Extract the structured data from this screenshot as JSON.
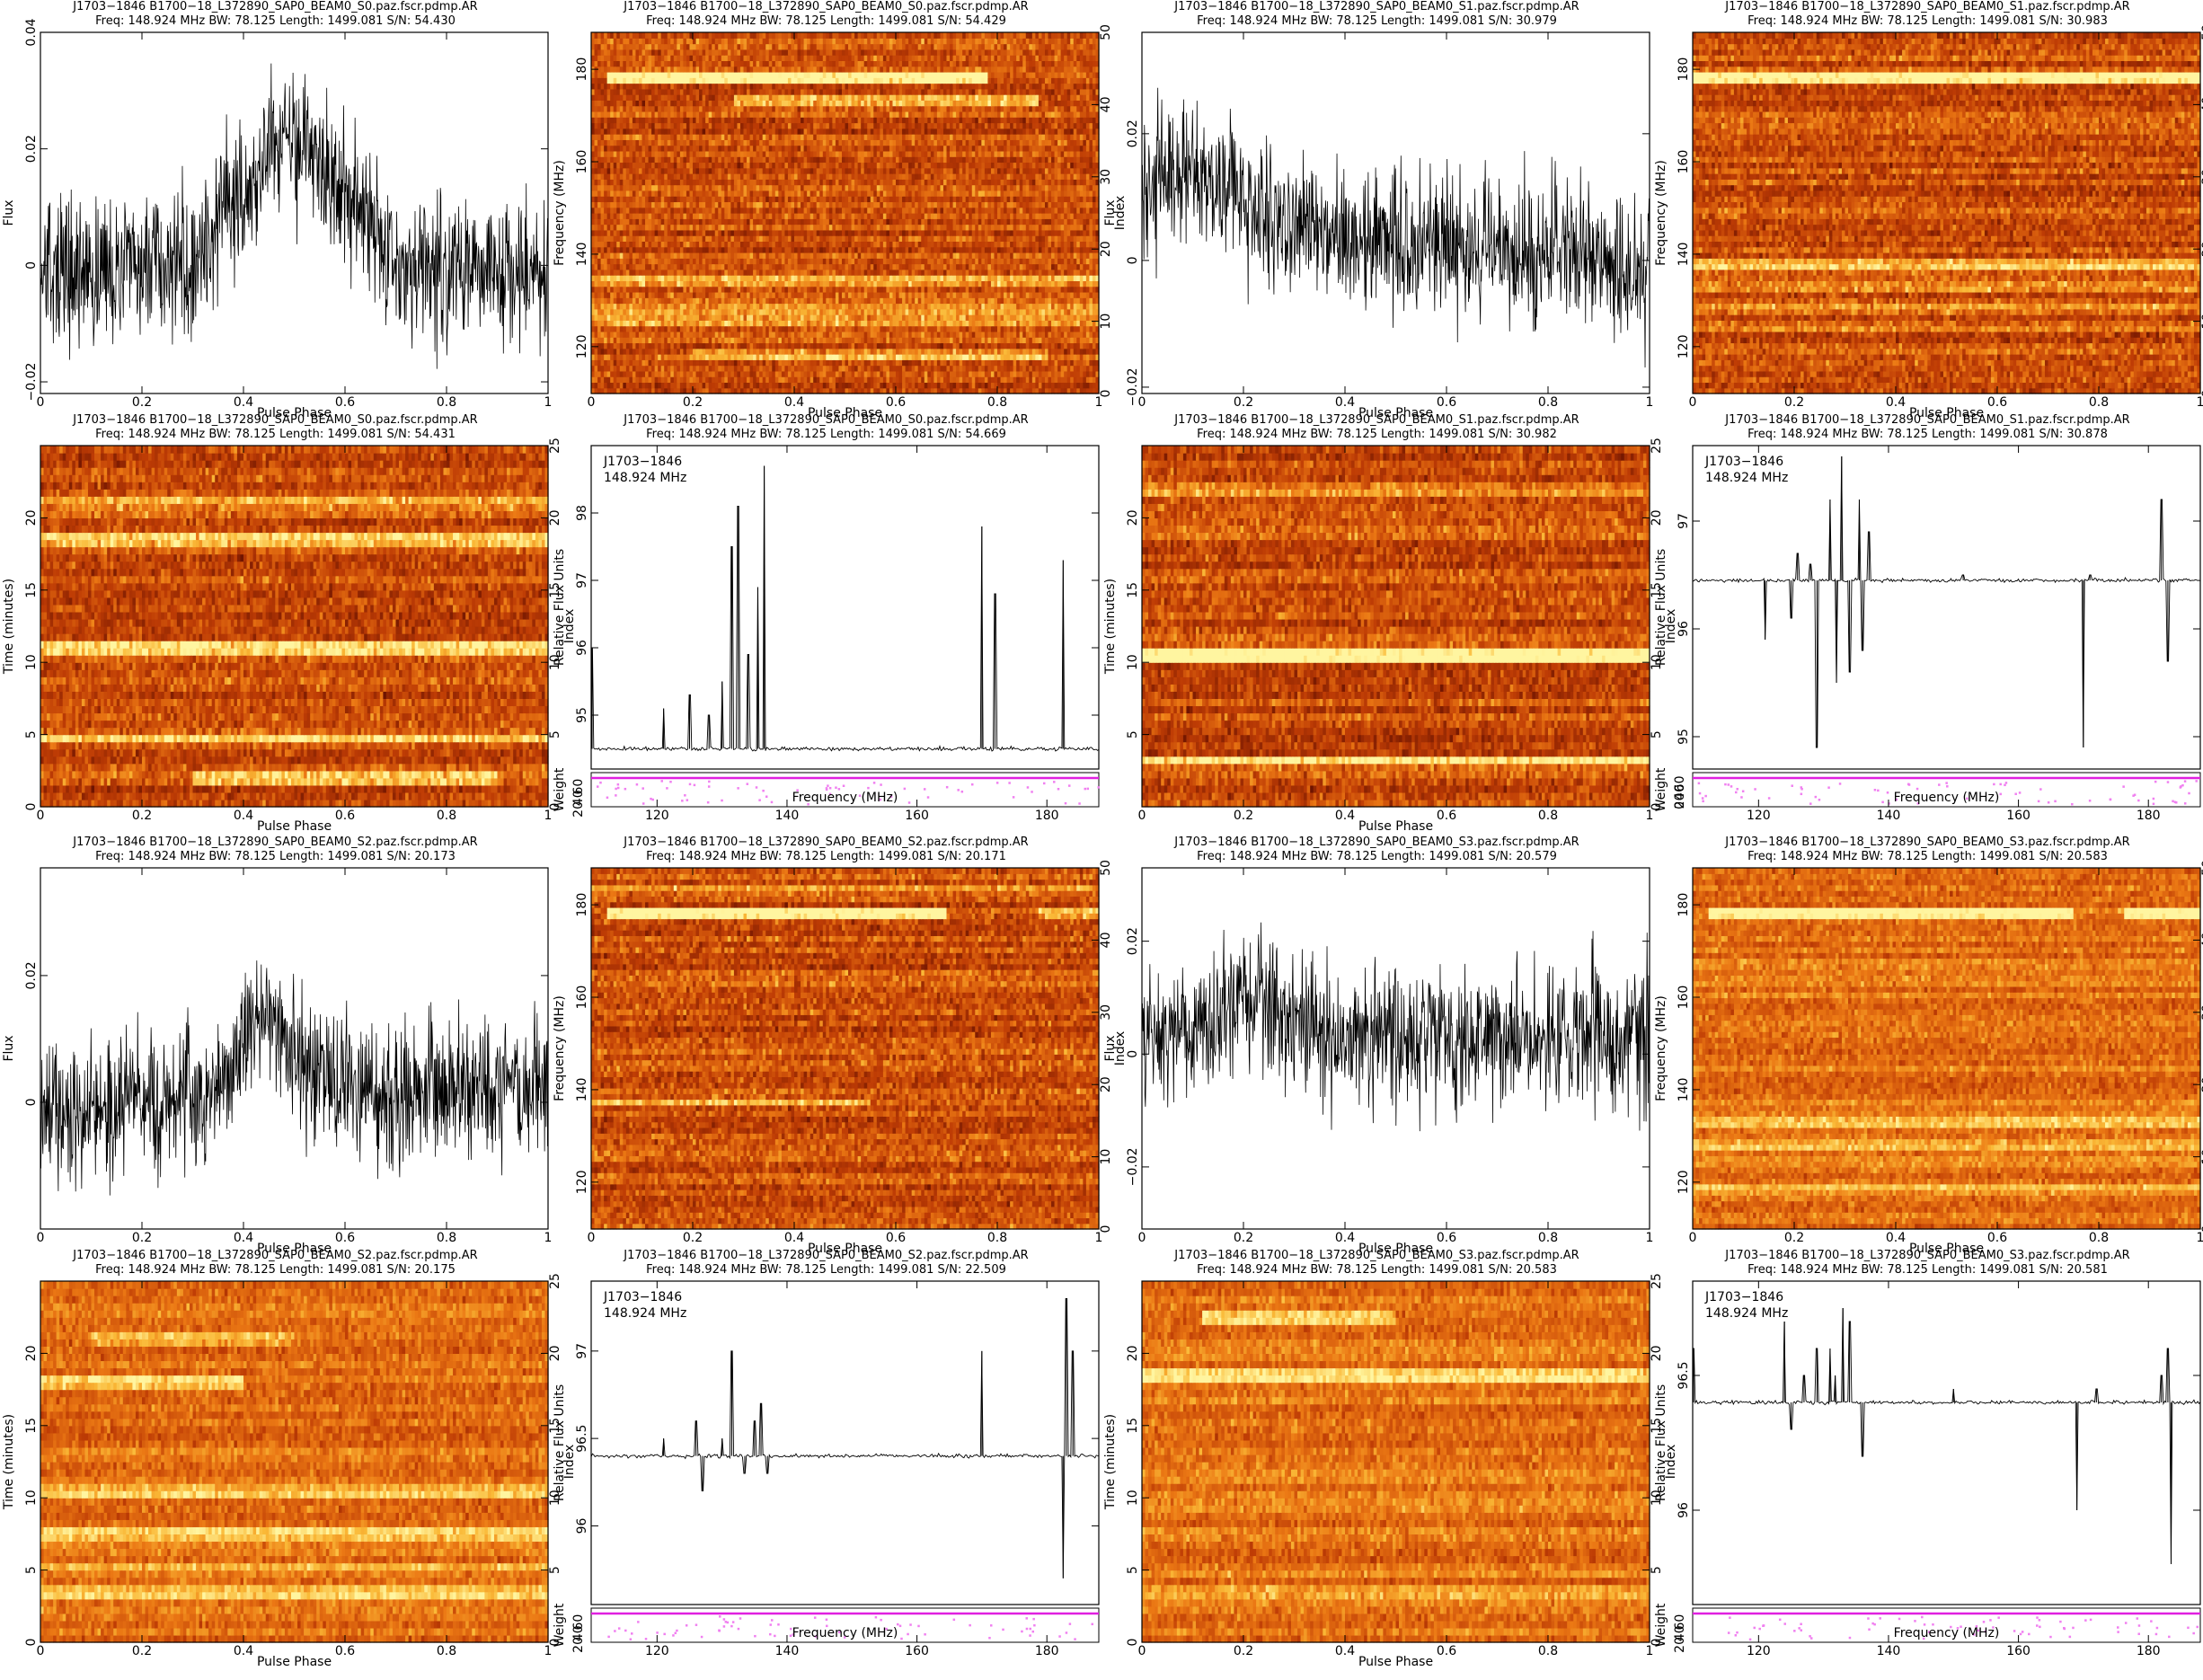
{
  "chart_data": [
    {
      "id": "p1",
      "type": "line",
      "title": "J1703−1846  B1700−18_L372890_SAP0_BEAM0_S0.paz.fscr.pdmp.AR",
      "subtitle": "Freq: 148.924 MHz BW: 78.125 Length: 1499.081 S/N: 54.430",
      "xlabel": "Pulse Phase",
      "ylabel": "Flux",
      "xlim": [
        0,
        1
      ],
      "ylim": [
        -0.022,
        0.04
      ],
      "xticks": [
        0,
        0.2,
        0.4,
        0.6,
        0.8,
        1
      ],
      "yticks": [
        -0.02,
        0,
        0.02,
        0.04
      ],
      "ytick_labels": [
        "−0.02",
        "0",
        "0.02",
        "0.04"
      ],
      "n": 1024,
      "profile": {
        "base": -0.001,
        "noise": 0.009,
        "peaks": [
          [
            0.5,
            0.022,
            0.14
          ]
        ]
      }
    },
    {
      "id": "p2",
      "type": "heatmap",
      "title": "J1703−1846  B1700−18_L372890_SAP0_BEAM0_S0.paz.fscr.pdmp.AR",
      "subtitle": "Freq: 148.924 MHz BW: 78.125 Length: 1499.081 S/N: 54.429",
      "xlabel": "Pulse Phase",
      "ylabel": "Frequency (MHz)",
      "right_label": "Index",
      "xlim": [
        0,
        1
      ],
      "ylim": [
        109.86,
        187.99
      ],
      "right_lim": [
        0,
        50
      ],
      "xticks": [
        0,
        0.2,
        0.4,
        0.6,
        0.8,
        1
      ],
      "yticks": [
        120,
        140,
        160,
        180
      ],
      "right_ticks": [
        0,
        10,
        20,
        30,
        40,
        50
      ],
      "bright_rows": [
        [
          178.6,
          0.03,
          0.78,
          0.95
        ],
        [
          173.3,
          0.28,
          0.88,
          0.6
        ],
        [
          133.8,
          0,
          1,
          0.45
        ],
        [
          128.4,
          0,
          1,
          0.3
        ],
        [
          125.3,
          0,
          1,
          0.35
        ],
        [
          118.2,
          0.2,
          0.9,
          0.45
        ]
      ]
    },
    {
      "id": "p3",
      "type": "line",
      "title": "J1703−1846  B1700−18_L372890_SAP0_BEAM0_S1.paz.fscr.pdmp.AR",
      "subtitle": "Freq: 148.924 MHz BW: 78.125 Length: 1499.081 S/N: 30.979",
      "xlabel": "Pulse Phase",
      "ylabel": "Flux",
      "xlim": [
        0,
        1
      ],
      "ylim": [
        -0.021,
        0.036
      ],
      "xticks": [
        0,
        0.2,
        0.4,
        0.6,
        0.8,
        1
      ],
      "yticks": [
        -0.02,
        0,
        0.02
      ],
      "ytick_labels": [
        "−0.02",
        "0",
        "0.02"
      ],
      "n": 1024,
      "profile": {
        "base": 0.003,
        "noise": 0.008,
        "peaks": [
          [
            0.1,
            0.008,
            0.12
          ]
        ],
        "slope": -0.004
      }
    },
    {
      "id": "p4",
      "type": "heatmap",
      "title": "J1703−1846  B1700−18_L372890_SAP0_BEAM0_S1.paz.fscr.pdmp.AR",
      "subtitle": "Freq: 148.924 MHz BW: 78.125 Length: 1499.081 S/N: 30.983",
      "xlabel": "Pulse Phase",
      "ylabel": "Frequency (MHz)",
      "right_label": "Index",
      "xlim": [
        0,
        1
      ],
      "ylim": [
        109.86,
        187.99
      ],
      "right_lim": [
        0,
        50
      ],
      "xticks": [
        0,
        0.2,
        0.4,
        0.6,
        0.8,
        1
      ],
      "yticks": [
        120,
        140,
        160,
        180
      ],
      "right_ticks": [
        0,
        10,
        20,
        30,
        40,
        50
      ],
      "bright_rows": [
        [
          178.5,
          0,
          1,
          0.9
        ],
        [
          137.5,
          0,
          1,
          0.55
        ],
        [
          133.0,
          0,
          1,
          0.45
        ],
        [
          128.5,
          0,
          1,
          0.35
        ],
        [
          124.2,
          0,
          1,
          0.3
        ]
      ]
    },
    {
      "id": "p5",
      "type": "heatmap",
      "title": "J1703−1846  B1700−18_L372890_SAP0_BEAM0_S0.paz.fscr.pdmp.AR",
      "subtitle": "Freq: 148.924 MHz BW: 78.125 Length: 1499.081 S/N: 54.431",
      "xlabel": "Pulse Phase",
      "ylabel": "Time (minutes)",
      "right_label": "Index",
      "xlim": [
        0,
        1
      ],
      "ylim": [
        0,
        25
      ],
      "right_lim": [
        0,
        25
      ],
      "xticks": [
        0,
        0.2,
        0.4,
        0.6,
        0.8,
        1
      ],
      "yticks": [
        0,
        5,
        10,
        15,
        20
      ],
      "right_ticks": [
        0,
        5,
        10,
        15,
        20,
        25
      ],
      "bright_rows": [
        [
          18.7,
          0,
          1,
          0.7
        ],
        [
          11.2,
          0,
          1,
          0.75
        ],
        [
          4.8,
          0,
          1,
          0.6
        ],
        [
          2.2,
          0.3,
          0.9,
          0.5
        ],
        [
          21.2,
          0,
          1,
          0.4
        ]
      ]
    },
    {
      "id": "p6",
      "type": "line",
      "title": "J1703−1846  B1700−18_L372890_SAP0_BEAM0_S0.paz.fscr.pdmp.AR",
      "subtitle": "Freq: 148.924 MHz BW: 78.125 Length: 1499.081 S/N: 54.669",
      "xlabel": "Frequency (MHz)",
      "ylabel": "Relative Flux Units",
      "lower_ylabel": "Weight",
      "lower_ytick_labels": [
        "20",
        "40",
        "60"
      ],
      "legend": [
        "J1703−1846",
        "148.924 MHz"
      ],
      "xlim": [
        109.86,
        187.99
      ],
      "ylim": [
        94.2,
        99
      ],
      "xticks": [
        120,
        140,
        160,
        180
      ],
      "yticks": [
        95,
        96,
        97,
        98
      ],
      "baseline": 94.5,
      "spikes": [
        [
          110,
          96.0
        ],
        [
          121,
          95.1
        ],
        [
          125,
          95.3
        ],
        [
          128,
          95.0
        ],
        [
          130,
          95.5
        ],
        [
          131.5,
          97.5
        ],
        [
          132.5,
          98.1
        ],
        [
          134,
          95.9
        ],
        [
          135.5,
          96.9
        ],
        [
          136.5,
          98.7
        ],
        [
          170,
          97.8
        ],
        [
          172,
          96.8
        ],
        [
          182.5,
          97.3
        ]
      ]
    },
    {
      "id": "p7",
      "type": "heatmap",
      "title": "J1703−1846  B1700−18_L372890_SAP0_BEAM0_S1.paz.fscr.pdmp.AR",
      "subtitle": "Freq: 148.924 MHz BW: 78.125 Length: 1499.081 S/N: 30.982",
      "xlabel": "Pulse Phase",
      "ylabel": "Time (minutes)",
      "right_label": "Index",
      "xlim": [
        0,
        1
      ],
      "ylim": [
        0,
        25
      ],
      "right_lim": [
        0,
        25
      ],
      "xticks": [
        0,
        0.2,
        0.4,
        0.6,
        0.8,
        1
      ],
      "yticks": [
        5,
        10,
        15,
        20
      ],
      "right_ticks": [
        0,
        5,
        10,
        15,
        20,
        25
      ],
      "bright_rows": [
        [
          10.6,
          0,
          1,
          0.95
        ],
        [
          3.3,
          0,
          1,
          0.8
        ],
        [
          22.0,
          0,
          1,
          0.35
        ]
      ]
    },
    {
      "id": "p8",
      "type": "line",
      "title": "J1703−1846  B1700−18_L372890_SAP0_BEAM0_S1.paz.fscr.pdmp.AR",
      "subtitle": "Freq: 148.924 MHz BW: 78.125 Length: 1499.081 S/N: 30.878",
      "xlabel": "Frequency (MHz)",
      "ylabel": "Relative Flux Units",
      "lower_ylabel": "Weight",
      "lower_ytick_labels": [
        "0",
        "20",
        "40",
        "60"
      ],
      "legend": [
        "J1703−1846",
        "148.924 MHz"
      ],
      "xlim": [
        109.86,
        187.99
      ],
      "ylim": [
        94.7,
        97.7
      ],
      "xticks": [
        120,
        140,
        160,
        180
      ],
      "yticks": [
        95,
        96,
        97
      ],
      "baseline": 96.45,
      "spikes": [
        [
          121,
          95.9
        ],
        [
          125,
          96.1
        ],
        [
          126,
          96.7
        ],
        [
          128,
          96.6
        ],
        [
          129,
          94.9
        ],
        [
          131,
          97.2
        ],
        [
          132,
          95.5
        ],
        [
          132.8,
          97.6
        ],
        [
          134,
          95.6
        ],
        [
          135.5,
          97.2
        ],
        [
          136,
          95.8
        ],
        [
          137,
          96.9
        ],
        [
          151.5,
          96.5
        ],
        [
          170,
          94.9
        ],
        [
          171,
          96.5
        ],
        [
          182,
          97.2
        ],
        [
          183,
          95.7
        ]
      ]
    },
    {
      "id": "p9",
      "type": "line",
      "title": "J1703−1846  B1700−18_L372890_SAP0_BEAM0_S2.paz.fscr.pdmp.AR",
      "subtitle": "Freq: 148.924 MHz BW: 78.125 Length: 1499.081 S/N: 20.173",
      "xlabel": "Pulse Phase",
      "ylabel": "Flux",
      "xlim": [
        0,
        1
      ],
      "ylim": [
        -0.02,
        0.037
      ],
      "xticks": [
        0,
        0.2,
        0.4,
        0.6,
        0.8,
        1
      ],
      "yticks": [
        0,
        0.02
      ],
      "ytick_labels": [
        "0",
        "0.02"
      ],
      "n": 1024,
      "profile": {
        "base": 0.001,
        "noise": 0.008,
        "peaks": [
          [
            0.45,
            0.012,
            0.08
          ]
        ],
        "slope": 0.002
      }
    },
    {
      "id": "p10",
      "type": "heatmap",
      "title": "J1703−1846  B1700−18_L372890_SAP0_BEAM0_S2.paz.fscr.pdmp.AR",
      "subtitle": "Freq: 148.924 MHz BW: 78.125 Length: 1499.081 S/N: 20.171",
      "xlabel": "Pulse Phase",
      "ylabel": "Frequency (MHz)",
      "right_label": "Index",
      "xlim": [
        0,
        1
      ],
      "ylim": [
        109.86,
        187.99
      ],
      "right_lim": [
        0,
        50
      ],
      "xticks": [
        0,
        0.2,
        0.4,
        0.6,
        0.8,
        1
      ],
      "yticks": [
        120,
        140,
        160,
        180
      ],
      "right_ticks": [
        0,
        10,
        20,
        30,
        40,
        50
      ],
      "bright_rows": [
        [
          183.8,
          0,
          1,
          0.4
        ],
        [
          178.5,
          0.03,
          0.7,
          0.95
        ],
        [
          178.5,
          0.88,
          1,
          0.5
        ],
        [
          137.3,
          0,
          0.55,
          0.5
        ]
      ]
    },
    {
      "id": "p11",
      "type": "line",
      "title": "J1703−1846  B1700−18_L372890_SAP0_BEAM0_S3.paz.fscr.pdmp.AR",
      "subtitle": "Freq: 148.924 MHz BW: 78.125 Length: 1499.081 S/N: 20.579",
      "xlabel": "Pulse Phase",
      "ylabel": "Flux",
      "xlim": [
        0,
        1
      ],
      "ylim": [
        -0.031,
        0.033
      ],
      "xticks": [
        0,
        0.2,
        0.4,
        0.6,
        0.8,
        1
      ],
      "yticks": [
        -0.02,
        0,
        0.02
      ],
      "ytick_labels": [
        "−0.02",
        "0",
        "0.02"
      ],
      "n": 1024,
      "profile": {
        "base": 0.003,
        "noise": 0.009,
        "peaks": [
          [
            0.22,
            0.006,
            0.1
          ]
        ]
      }
    },
    {
      "id": "p12",
      "type": "heatmap",
      "title": "J1703−1846  B1700−18_L372890_SAP0_BEAM0_S3.paz.fscr.pdmp.AR",
      "subtitle": "Freq: 148.924 MHz BW: 78.125 Length: 1499.081 S/N: 20.583",
      "xlabel": "Pulse Phase",
      "ylabel": "Frequency (MHz)",
      "right_label": "Index",
      "xlim": [
        0,
        1
      ],
      "ylim": [
        109.86,
        187.99
      ],
      "right_lim": [
        0,
        50
      ],
      "xticks": [
        0,
        0.2,
        0.4,
        0.6,
        0.8,
        1
      ],
      "yticks": [
        120,
        140,
        160,
        180
      ],
      "right_ticks": [
        0,
        10,
        20,
        30,
        40,
        50
      ],
      "light": true,
      "bright_rows": [
        [
          178.3,
          0.03,
          0.75,
          0.9
        ],
        [
          178.3,
          0.85,
          1,
          0.9
        ],
        [
          133.5,
          0,
          1,
          0.4
        ],
        [
          128.0,
          0,
          1,
          0.35
        ],
        [
          124.5,
          0,
          1,
          0.3
        ],
        [
          118.0,
          0,
          1,
          0.35
        ]
      ]
    },
    {
      "id": "p13",
      "type": "heatmap",
      "title": "J1703−1846  B1700−18_L372890_SAP0_BEAM0_S2.paz.fscr.pdmp.AR",
      "subtitle": "Freq: 148.924 MHz BW: 78.125 Length: 1499.081 S/N: 20.175",
      "xlabel": "Pulse Phase",
      "ylabel": "Time (minutes)",
      "right_label": "Index",
      "xlim": [
        0,
        1
      ],
      "ylim": [
        0,
        25
      ],
      "right_lim": [
        0,
        25
      ],
      "xticks": [
        0,
        0.2,
        0.4,
        0.6,
        0.8,
        1
      ],
      "yticks": [
        0,
        5,
        10,
        15,
        20
      ],
      "right_ticks": [
        0,
        5,
        10,
        15,
        20,
        25
      ],
      "light": true,
      "bright_rows": [
        [
          21.2,
          0.1,
          0.5,
          0.45
        ],
        [
          17.8,
          0,
          0.4,
          0.6
        ],
        [
          10.6,
          0,
          1,
          0.5
        ],
        [
          7.4,
          0,
          1,
          0.5
        ],
        [
          5.3,
          0,
          1,
          0.5
        ],
        [
          3.4,
          0,
          1,
          0.55
        ]
      ]
    },
    {
      "id": "p14",
      "type": "line",
      "title": "J1703−1846  B1700−18_L372890_SAP0_BEAM0_S2.paz.fscr.pdmp.AR",
      "subtitle": "Freq: 148.924 MHz BW: 78.125 Length: 1499.081 S/N: 22.509",
      "xlabel": "Frequency (MHz)",
      "ylabel": "Relative Flux Units",
      "lower_ylabel": "Weight",
      "lower_ytick_labels": [
        "20",
        "40",
        "60"
      ],
      "legend": [
        "J1703−1846",
        "148.924 MHz"
      ],
      "xlim": [
        109.86,
        187.99
      ],
      "ylim": [
        95.55,
        97.4
      ],
      "xticks": [
        120,
        140,
        160,
        180
      ],
      "yticks": [
        96,
        96.5,
        97
      ],
      "ytick_labels": [
        "96",
        "96.5",
        "97"
      ],
      "baseline": 96.4,
      "spikes": [
        [
          121,
          96.5
        ],
        [
          126,
          96.6
        ],
        [
          127,
          96.2
        ],
        [
          130,
          96.5
        ],
        [
          131.5,
          97.0
        ],
        [
          133.5,
          96.3
        ],
        [
          135,
          96.6
        ],
        [
          136,
          96.7
        ],
        [
          137,
          96.3
        ],
        [
          170,
          97.0
        ],
        [
          182.5,
          95.7
        ],
        [
          183,
          97.3
        ],
        [
          184,
          97.0
        ]
      ]
    },
    {
      "id": "p15",
      "type": "heatmap",
      "title": "J1703−1846  B1700−18_L372890_SAP0_BEAM0_S3.paz.fscr.pdmp.AR",
      "subtitle": "Freq: 148.924 MHz BW: 78.125 Length: 1499.081 S/N: 20.583",
      "xlabel": "Pulse Phase",
      "ylabel": "Time (minutes)",
      "right_label": "Index",
      "xlim": [
        0,
        1
      ],
      "ylim": [
        0,
        25
      ],
      "right_lim": [
        0,
        25
      ],
      "xticks": [
        0,
        0.2,
        0.4,
        0.6,
        0.8,
        1
      ],
      "yticks": [
        0,
        5,
        10,
        15,
        20
      ],
      "right_ticks": [
        0,
        5,
        10,
        15,
        20,
        25
      ],
      "light": true,
      "bright_rows": [
        [
          22.3,
          0.12,
          0.5,
          0.7
        ],
        [
          18.6,
          0,
          1,
          0.6
        ],
        [
          3.4,
          0,
          1,
          0.45
        ]
      ]
    },
    {
      "id": "p16",
      "type": "line",
      "title": "J1703−1846  B1700−18_L372890_SAP0_BEAM0_S3.paz.fscr.pdmp.AR",
      "subtitle": "Freq: 148.924 MHz BW: 78.125 Length: 1499.081 S/N: 20.581",
      "xlabel": "Frequency (MHz)",
      "ylabel": "Relative Flux Units",
      "lower_ylabel": "Weight",
      "lower_ytick_labels": [
        "20",
        "40",
        "60"
      ],
      "legend": [
        "J1703−1846",
        "148.924 MHz"
      ],
      "xlim": [
        109.86,
        187.99
      ],
      "ylim": [
        95.65,
        96.85
      ],
      "xticks": [
        120,
        140,
        160,
        180
      ],
      "yticks": [
        96,
        96.5
      ],
      "ytick_labels": [
        "96",
        "96.5"
      ],
      "baseline": 96.4,
      "spikes": [
        [
          110,
          96.6
        ],
        [
          124,
          96.7
        ],
        [
          125,
          96.3
        ],
        [
          127,
          96.5
        ],
        [
          129,
          96.6
        ],
        [
          131,
          96.6
        ],
        [
          131.8,
          96.5
        ],
        [
          133,
          96.75
        ],
        [
          134,
          96.7
        ],
        [
          136,
          96.2
        ],
        [
          150,
          96.45
        ],
        [
          169,
          96.0
        ],
        [
          172,
          96.45
        ],
        [
          182,
          96.5
        ],
        [
          183,
          96.6
        ],
        [
          183.5,
          95.8
        ]
      ]
    }
  ]
}
